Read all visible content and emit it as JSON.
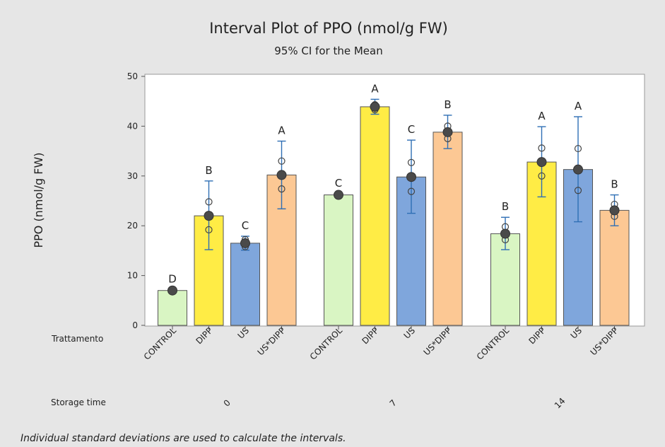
{
  "chart_data": {
    "type": "bar",
    "title": "Interval Plot of PPO (nmol/g FW)",
    "subtitle": "95% CI for the Mean",
    "ylabel": "PPO (nmol/g FW)",
    "ylim": [
      0,
      50
    ],
    "yticks": [
      0,
      10,
      20,
      30,
      40,
      50
    ],
    "row_labels": [
      "Trattamento",
      "Storage time"
    ],
    "footnote": "Individual standard deviations are used to calculate the intervals.",
    "colors": {
      "CONTROL": "#d9f5c3",
      "DIPP": "#ffec45",
      "US": "#7fa6dc",
      "US*DIPP": "#fcc894"
    },
    "groups": [
      {
        "label": "0",
        "bars": [
          {
            "category": "CONTROL",
            "tick_label": "CONTROL",
            "value": 7.0,
            "ci": [
              6.8,
              7.2
            ],
            "points": [
              6.9,
              7.1
            ],
            "letter": "D"
          },
          {
            "category": "DIPP",
            "tick_label": "DIPP",
            "value": 22.0,
            "ci": [
              15.2,
              29.0
            ],
            "points": [
              24.8,
              19.2
            ],
            "letter": "B"
          },
          {
            "category": "US",
            "tick_label": "US",
            "value": 16.5,
            "ci": [
              15.1,
              17.9
            ],
            "points": [
              17.2,
              15.8
            ],
            "letter": "C"
          },
          {
            "category": "US*DIPP",
            "tick_label": "US*DIPP",
            "value": 30.2,
            "ci": [
              23.4,
              37.0
            ],
            "points": [
              33.0,
              27.4
            ],
            "letter": "A"
          }
        ]
      },
      {
        "label": "7",
        "bars": [
          {
            "category": "CONTROL",
            "tick_label": "CONTROL",
            "value": 26.2,
            "ci": [
              26.0,
              26.4
            ],
            "points": [
              26.1,
              26.3
            ],
            "letter": "C"
          },
          {
            "category": "DIPP",
            "tick_label": "DIPP",
            "value": 43.9,
            "ci": [
              42.4,
              45.4
            ],
            "points": [
              44.3,
              43.3
            ],
            "letter": "A"
          },
          {
            "category": "US",
            "tick_label": "US",
            "value": 29.8,
            "ci": [
              22.5,
              37.2
            ],
            "points": [
              32.7,
              26.9
            ],
            "letter": "C"
          },
          {
            "category": "US*DIPP",
            "tick_label": "US*DIPP",
            "value": 38.8,
            "ci": [
              35.5,
              42.2
            ],
            "points": [
              40.0,
              37.5
            ],
            "letter": "B"
          }
        ]
      },
      {
        "label": "14",
        "bars": [
          {
            "category": "CONTROL",
            "tick_label": "CONTROL",
            "value": 18.4,
            "ci": [
              15.2,
              21.7
            ],
            "points": [
              19.8,
              17.2
            ],
            "letter": "B"
          },
          {
            "category": "DIPP",
            "tick_label": "DIPP",
            "value": 32.8,
            "ci": [
              25.8,
              39.9
            ],
            "points": [
              35.6,
              30.0
            ],
            "letter": "A"
          },
          {
            "category": "US",
            "tick_label": "US",
            "value": 31.3,
            "ci": [
              20.8,
              41.9
            ],
            "points": [
              35.5,
              27.1
            ],
            "letter": "A"
          },
          {
            "category": "US*DIPP",
            "tick_label": "US*DIPP",
            "value": 23.1,
            "ci": [
              20.0,
              26.2
            ],
            "points": [
              24.3,
              21.9
            ],
            "letter": "B"
          }
        ]
      }
    ]
  }
}
